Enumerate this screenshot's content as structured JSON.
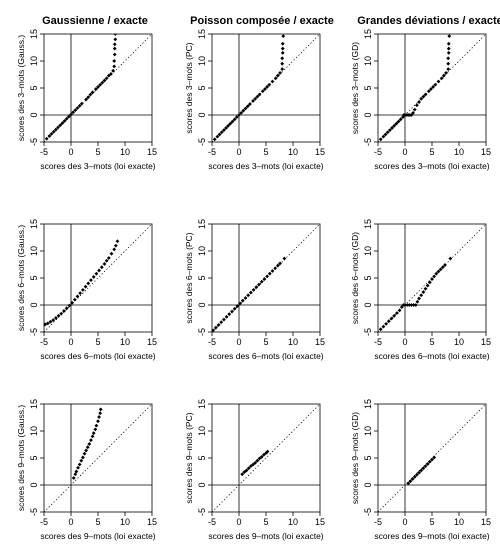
{
  "column_titles": [
    "Gaussienne / exacte",
    "Poisson composée / exacte",
    "Grandes déviations / exacte"
  ],
  "axis_ticks": [
    "-5",
    "0",
    "5",
    "10",
    "15"
  ],
  "chart_data": [
    {
      "type": "scatter",
      "row": 0,
      "col": 0,
      "xlabel": "scores des 3–mots (loi exacte)",
      "ylabel": "scores des 3–mots (Gauss.)",
      "xlim": [
        -5,
        15
      ],
      "ylim": [
        -5,
        15
      ],
      "diagonal": true,
      "ref_lines": {
        "x": 0,
        "y": 0
      },
      "points": [
        [
          -4.5,
          -4.4
        ],
        [
          -4,
          -3.9
        ],
        [
          -3.6,
          -3.5
        ],
        [
          -3.2,
          -3.1
        ],
        [
          -2.8,
          -2.7
        ],
        [
          -2.4,
          -2.3
        ],
        [
          -2,
          -1.9
        ],
        [
          -1.6,
          -1.5
        ],
        [
          -1.2,
          -1.1
        ],
        [
          -0.8,
          -0.7
        ],
        [
          -0.4,
          -0.3
        ],
        [
          0,
          0.1
        ],
        [
          0.4,
          0.5
        ],
        [
          0.8,
          0.9
        ],
        [
          1.2,
          1.3
        ],
        [
          1.6,
          1.7
        ],
        [
          2,
          2.1
        ],
        [
          2.8,
          2.9
        ],
        [
          3.2,
          3.3
        ],
        [
          3.6,
          3.8
        ],
        [
          4,
          4.2
        ],
        [
          4.6,
          4.8
        ],
        [
          5,
          5.2
        ],
        [
          5.4,
          5.6
        ],
        [
          5.8,
          6
        ],
        [
          6.2,
          6.4
        ],
        [
          6.6,
          6.8
        ],
        [
          7,
          7.3
        ],
        [
          7.4,
          7.6
        ],
        [
          7.8,
          8.2
        ],
        [
          8,
          9
        ],
        [
          8,
          10
        ],
        [
          8.1,
          11.2
        ],
        [
          8.1,
          12.3
        ],
        [
          8.1,
          13.1
        ],
        [
          8.2,
          14
        ],
        [
          8.2,
          15
        ]
      ]
    },
    {
      "type": "scatter",
      "row": 0,
      "col": 1,
      "xlabel": "scores des 3–mots (loi exacte)",
      "ylabel": "scores des 3–mots (PC)",
      "xlim": [
        -5,
        15
      ],
      "ylim": [
        -5,
        15
      ],
      "diagonal": true,
      "ref_lines": {
        "x": 0,
        "y": 0
      },
      "points": [
        [
          -4.5,
          -4.5
        ],
        [
          -4,
          -4
        ],
        [
          -3.6,
          -3.6
        ],
        [
          -3.2,
          -3.2
        ],
        [
          -2.8,
          -2.8
        ],
        [
          -2.4,
          -2.4
        ],
        [
          -2,
          -2
        ],
        [
          -1.6,
          -1.6
        ],
        [
          -1.2,
          -1.2
        ],
        [
          -0.8,
          -0.8
        ],
        [
          -0.4,
          -0.4
        ],
        [
          0,
          0
        ],
        [
          0.4,
          0.4
        ],
        [
          0.8,
          0.8
        ],
        [
          1.2,
          1.2
        ],
        [
          1.6,
          1.6
        ],
        [
          2,
          2
        ],
        [
          2.6,
          2.6
        ],
        [
          3,
          3
        ],
        [
          3.4,
          3.4
        ],
        [
          3.8,
          3.8
        ],
        [
          4.4,
          4.4
        ],
        [
          4.8,
          4.8
        ],
        [
          5.2,
          5.2
        ],
        [
          5.6,
          5.6
        ],
        [
          6.2,
          6.2
        ],
        [
          6.8,
          6.8
        ],
        [
          7.2,
          7.3
        ],
        [
          7.6,
          7.8
        ],
        [
          8,
          8.5
        ],
        [
          8,
          9.5
        ],
        [
          8,
          10.5
        ],
        [
          8.1,
          11.5
        ],
        [
          8.1,
          12.3
        ],
        [
          8.1,
          13.2
        ],
        [
          8.2,
          14.6
        ]
      ]
    },
    {
      "type": "scatter",
      "row": 0,
      "col": 2,
      "xlabel": "scores des 3–mots (loi exacte)",
      "ylabel": "scores des 3–mots (GD)",
      "xlim": [
        -5,
        15
      ],
      "ylim": [
        -5,
        15
      ],
      "diagonal": true,
      "ref_lines": {
        "x": 0,
        "y": 0
      },
      "points": [
        [
          -4.5,
          -4.5
        ],
        [
          -4,
          -4
        ],
        [
          -3.6,
          -3.6
        ],
        [
          -3.2,
          -3.2
        ],
        [
          -2.8,
          -2.8
        ],
        [
          -2.4,
          -2.4
        ],
        [
          -2,
          -2
        ],
        [
          -1.6,
          -1.6
        ],
        [
          -1.2,
          -1.2
        ],
        [
          -0.8,
          -0.8
        ],
        [
          -0.4,
          -0.4
        ],
        [
          -0.2,
          0
        ],
        [
          0,
          0
        ],
        [
          0.3,
          0
        ],
        [
          0.6,
          0
        ],
        [
          0.9,
          0
        ],
        [
          1.2,
          0
        ],
        [
          1.5,
          0.4
        ],
        [
          1.8,
          1
        ],
        [
          2.2,
          1.8
        ],
        [
          2.6,
          2.4
        ],
        [
          3,
          3
        ],
        [
          3.4,
          3.4
        ],
        [
          3.8,
          3.8
        ],
        [
          4.4,
          4.4
        ],
        [
          4.8,
          4.8
        ],
        [
          5.2,
          5.2
        ],
        [
          5.6,
          5.6
        ],
        [
          6.2,
          6.2
        ],
        [
          6.8,
          6.8
        ],
        [
          7.2,
          7.3
        ],
        [
          7.6,
          7.8
        ],
        [
          8,
          8.5
        ],
        [
          8,
          9.5
        ],
        [
          8,
          10.5
        ],
        [
          8.1,
          11.5
        ],
        [
          8.1,
          12.3
        ],
        [
          8.1,
          13.2
        ],
        [
          8.2,
          14.6
        ]
      ]
    },
    {
      "type": "scatter",
      "row": 1,
      "col": 0,
      "xlabel": "scores des 6–mots (loi exacte)",
      "ylabel": "scores des 6–mots (Gauss.)",
      "xlim": [
        -5,
        15
      ],
      "ylim": [
        -5,
        15
      ],
      "diagonal": true,
      "ref_lines": {
        "x": 0,
        "y": 0
      },
      "points": [
        [
          -4.8,
          -3.6
        ],
        [
          -4.3,
          -3.4
        ],
        [
          -3.8,
          -3.1
        ],
        [
          -3.3,
          -2.8
        ],
        [
          -2.8,
          -2.4
        ],
        [
          -2.3,
          -2
        ],
        [
          -1.8,
          -1.6
        ],
        [
          -1.3,
          -1.1
        ],
        [
          -0.8,
          -0.6
        ],
        [
          -0.3,
          -0.1
        ],
        [
          0.2,
          0.4
        ],
        [
          0.7,
          1
        ],
        [
          1.2,
          1.6
        ],
        [
          1.7,
          2.2
        ],
        [
          2.2,
          2.8
        ],
        [
          2.7,
          3.4
        ],
        [
          3.2,
          4
        ],
        [
          3.7,
          4.6
        ],
        [
          4.2,
          5.2
        ],
        [
          4.7,
          5.8
        ],
        [
          5.2,
          6.4
        ],
        [
          5.7,
          7
        ],
        [
          6.2,
          7.6
        ],
        [
          6.6,
          8.2
        ],
        [
          7,
          8.7
        ],
        [
          7.5,
          9.5
        ],
        [
          8,
          10.3
        ],
        [
          8.3,
          11
        ],
        [
          8.6,
          11.8
        ]
      ]
    },
    {
      "type": "scatter",
      "row": 1,
      "col": 1,
      "xlabel": "scores des 6–mots (loi exacte)",
      "ylabel": "scores des 6–mots (PC)",
      "xlim": [
        -5,
        15
      ],
      "ylim": [
        -5,
        15
      ],
      "diagonal": true,
      "ref_lines": {
        "x": 0,
        "y": 0
      },
      "points": [
        [
          -4.8,
          -4.7
        ],
        [
          -4.3,
          -4.2
        ],
        [
          -3.8,
          -3.7
        ],
        [
          -3.3,
          -3.2
        ],
        [
          -2.8,
          -2.7
        ],
        [
          -2.3,
          -2.2
        ],
        [
          -1.8,
          -1.7
        ],
        [
          -1.3,
          -1.2
        ],
        [
          -0.8,
          -0.7
        ],
        [
          -0.3,
          -0.2
        ],
        [
          0.2,
          0.3
        ],
        [
          0.7,
          0.8
        ],
        [
          1.2,
          1.3
        ],
        [
          1.7,
          1.8
        ],
        [
          2.2,
          2.3
        ],
        [
          2.7,
          2.8
        ],
        [
          3.2,
          3.3
        ],
        [
          3.7,
          3.8
        ],
        [
          4.2,
          4.3
        ],
        [
          4.7,
          4.8
        ],
        [
          5.2,
          5.3
        ],
        [
          5.7,
          5.8
        ],
        [
          6.2,
          6.3
        ],
        [
          6.7,
          6.8
        ],
        [
          7.2,
          7.3
        ],
        [
          7.6,
          7.7
        ],
        [
          8.4,
          8.6
        ]
      ]
    },
    {
      "type": "scatter",
      "row": 1,
      "col": 2,
      "xlabel": "scores des 6–mots (loi exacte)",
      "ylabel": "scores des 6–mots (GD)",
      "xlim": [
        -5,
        15
      ],
      "ylim": [
        -5,
        15
      ],
      "diagonal": true,
      "ref_lines": {
        "x": 0,
        "y": 0
      },
      "points": [
        [
          -4.5,
          -4.5
        ],
        [
          -4,
          -4
        ],
        [
          -3.5,
          -3.5
        ],
        [
          -3,
          -3
        ],
        [
          -2.5,
          -2.5
        ],
        [
          -2,
          -2
        ],
        [
          -1.5,
          -1.5
        ],
        [
          -1,
          -1
        ],
        [
          -0.6,
          -0.4
        ],
        [
          -0.3,
          0
        ],
        [
          0,
          0
        ],
        [
          0.4,
          0
        ],
        [
          0.8,
          0
        ],
        [
          1.2,
          0
        ],
        [
          1.6,
          0
        ],
        [
          2,
          0
        ],
        [
          2.3,
          0.6
        ],
        [
          2.6,
          1.2
        ],
        [
          3,
          1.8
        ],
        [
          3.4,
          2.4
        ],
        [
          3.8,
          3
        ],
        [
          4.2,
          3.6
        ],
        [
          4.6,
          4.2
        ],
        [
          5,
          4.8
        ],
        [
          5.4,
          5.3
        ],
        [
          5.8,
          5.8
        ],
        [
          6.2,
          6.2
        ],
        [
          6.6,
          6.6
        ],
        [
          7,
          7
        ],
        [
          7.4,
          7.4
        ],
        [
          8.4,
          8.6
        ]
      ]
    },
    {
      "type": "scatter",
      "row": 2,
      "col": 0,
      "xlabel": "scores des 9–mots (loi exacte)",
      "ylabel": "scores des 9–mots (Gauss.)",
      "xlim": [
        -5,
        15
      ],
      "ylim": [
        -5,
        15
      ],
      "diagonal": true,
      "ref_lines": {
        "x": 0,
        "y": 0
      },
      "points": [
        [
          0.5,
          1.3
        ],
        [
          0.8,
          2
        ],
        [
          1,
          2.5
        ],
        [
          1.3,
          3.2
        ],
        [
          1.6,
          3.8
        ],
        [
          1.9,
          4.5
        ],
        [
          2.2,
          5.1
        ],
        [
          2.5,
          5.8
        ],
        [
          2.8,
          6.4
        ],
        [
          3.1,
          7
        ],
        [
          3.4,
          7.6
        ],
        [
          3.7,
          8.3
        ],
        [
          4,
          9
        ],
        [
          4.2,
          9.6
        ],
        [
          4.5,
          10.3
        ],
        [
          4.7,
          11
        ],
        [
          5,
          11.8
        ],
        [
          5.2,
          12.6
        ],
        [
          5.4,
          13.3
        ],
        [
          5.5,
          14
        ]
      ]
    },
    {
      "type": "scatter",
      "row": 2,
      "col": 1,
      "xlabel": "scores des 9–mots (loi exacte)",
      "ylabel": "scores des 9–mots (PC)",
      "xlim": [
        -5,
        15
      ],
      "ylim": [
        -5,
        15
      ],
      "diagonal": true,
      "ref_lines": {
        "x": 0,
        "y": 0
      },
      "points": [
        [
          0.6,
          2
        ],
        [
          1,
          2.4
        ],
        [
          1.4,
          2.7
        ],
        [
          1.8,
          3.1
        ],
        [
          2.2,
          3.5
        ],
        [
          2.6,
          3.8
        ],
        [
          3,
          4.1
        ],
        [
          3.4,
          4.5
        ],
        [
          3.8,
          4.9
        ],
        [
          4.2,
          5.2
        ],
        [
          4.6,
          5.6
        ],
        [
          5,
          5.9
        ],
        [
          5.3,
          6.2
        ]
      ]
    },
    {
      "type": "scatter",
      "row": 2,
      "col": 2,
      "xlabel": "scores des 9–mots (loi exacte)",
      "ylabel": "scores des 9–mots (GD)",
      "xlim": [
        -5,
        15
      ],
      "ylim": [
        -5,
        15
      ],
      "diagonal": true,
      "ref_lines": {
        "x": 0,
        "y": 0
      },
      "points": [
        [
          0.6,
          0.3
        ],
        [
          1,
          0.7
        ],
        [
          1.4,
          1.1
        ],
        [
          1.8,
          1.5
        ],
        [
          2.2,
          1.9
        ],
        [
          2.6,
          2.3
        ],
        [
          3,
          2.7
        ],
        [
          3.4,
          3.1
        ],
        [
          3.8,
          3.5
        ],
        [
          4.2,
          3.9
        ],
        [
          4.6,
          4.3
        ],
        [
          5,
          4.7
        ],
        [
          5.4,
          5.1
        ]
      ]
    }
  ]
}
